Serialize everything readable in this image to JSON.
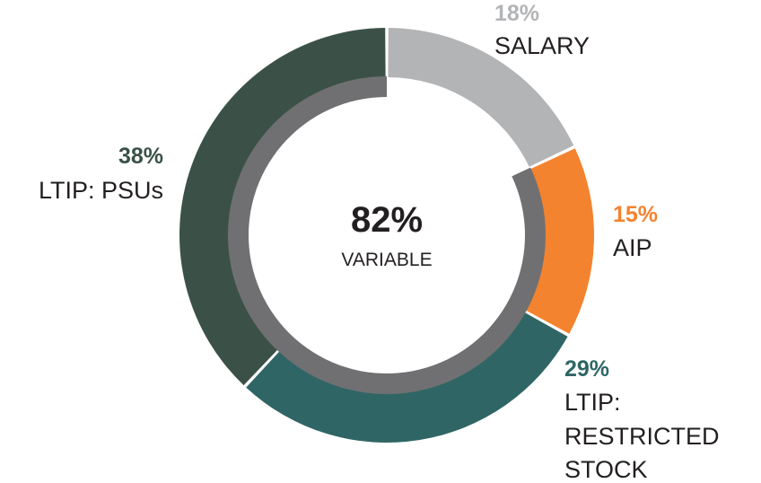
{
  "chart_data": {
    "type": "pie",
    "style": "donut",
    "series": [
      {
        "label": "SALARY",
        "label_lines": [
          "SALARY"
        ],
        "value": 18,
        "value_label": "18%",
        "color": "#b3b4b6"
      },
      {
        "label": "AIP",
        "label_lines": [
          "AIP"
        ],
        "value": 15,
        "value_label": "15%",
        "color": "#f3832f"
      },
      {
        "label": "LTIP: RESTRICTED STOCK",
        "label_lines": [
          "LTIP:",
          "RESTRICTED",
          "STOCK"
        ],
        "value": 29,
        "value_label": "29%",
        "color": "#2f6665"
      },
      {
        "label": "LTIP: PSUs",
        "label_lines": [
          "LTIP: PSUs"
        ],
        "value": 38,
        "value_label": "38%",
        "color": "#3b5147"
      }
    ],
    "inner_ring": {
      "value": 82,
      "color": "#707072",
      "center_value": "82%",
      "center_label": "VARIABLE"
    }
  }
}
